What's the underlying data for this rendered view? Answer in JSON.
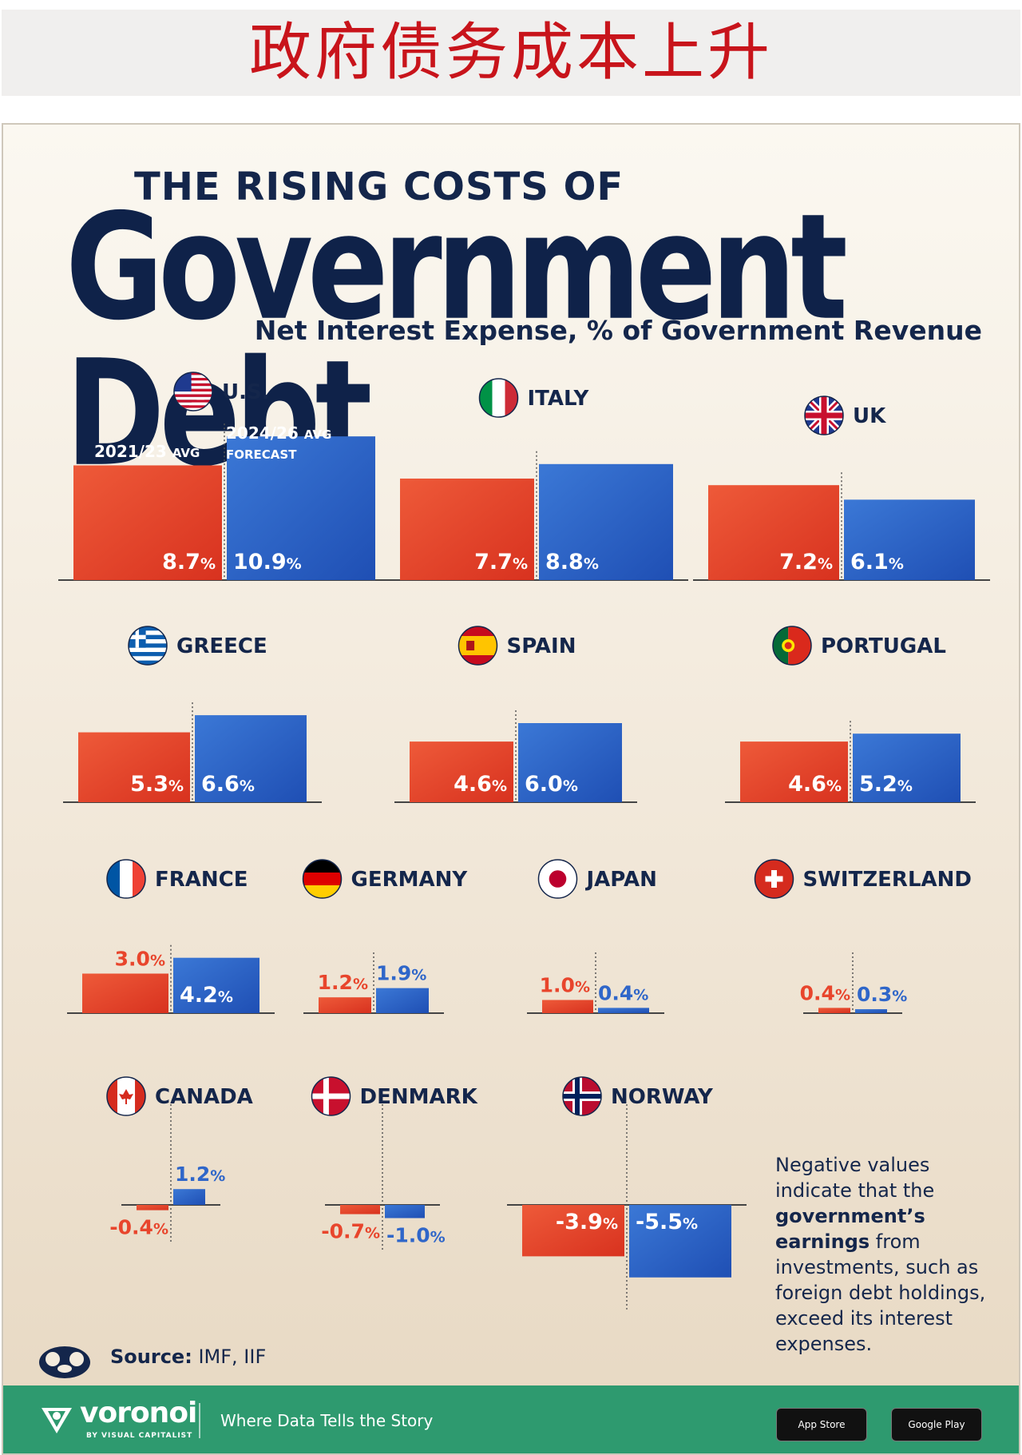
{
  "banner": {
    "title": "政府债务成本上升"
  },
  "header": {
    "pre_title": "THE RISING COSTS OF",
    "main_title": "Government Debt",
    "subtitle": "Net Interest Expense, % of Government Revenue"
  },
  "chart_data": {
    "type": "bar",
    "title": "The Rising Costs of Government Debt",
    "subtitle": "Net Interest Expense, % of Government Revenue",
    "unit": "%",
    "series": [
      {
        "name": "2021/23 AVG",
        "color": "#e8452c"
      },
      {
        "name": "2024/26 AVG FORECAST",
        "color": "#2f66c9"
      }
    ],
    "legend": {
      "series_1": "2021/23",
      "series_2": "2024/26",
      "avg": "AVG",
      "forecast": "FORECAST"
    },
    "countries": [
      {
        "name": "U.S.",
        "flag": "us-flag",
        "values": [
          8.7,
          10.9
        ]
      },
      {
        "name": "ITALY",
        "flag": "italy-flag",
        "values": [
          7.7,
          8.8
        ]
      },
      {
        "name": "UK",
        "flag": "uk-flag",
        "values": [
          7.2,
          6.1
        ]
      },
      {
        "name": "GREECE",
        "flag": "greece-flag",
        "values": [
          5.3,
          6.6
        ]
      },
      {
        "name": "SPAIN",
        "flag": "spain-flag",
        "values": [
          4.6,
          6.0
        ]
      },
      {
        "name": "PORTUGAL",
        "flag": "portugal-flag",
        "values": [
          4.6,
          5.2
        ]
      },
      {
        "name": "FRANCE",
        "flag": "france-flag",
        "values": [
          3.0,
          4.2
        ]
      },
      {
        "name": "GERMANY",
        "flag": "germany-flag",
        "values": [
          1.2,
          1.9
        ]
      },
      {
        "name": "JAPAN",
        "flag": "japan-flag",
        "values": [
          1.0,
          0.4
        ]
      },
      {
        "name": "SWITZERLAND",
        "flag": "switzerland-flag",
        "values": [
          0.4,
          0.3
        ]
      },
      {
        "name": "CANADA",
        "flag": "canada-flag",
        "values": [
          -0.4,
          1.2
        ]
      },
      {
        "name": "DENMARK",
        "flag": "denmark-flag",
        "values": [
          -0.7,
          -1.0
        ]
      },
      {
        "name": "NORWAY",
        "flag": "norway-flag",
        "values": [
          -3.9,
          -5.5
        ]
      }
    ]
  },
  "note": {
    "before": "Negative values indicate that the ",
    "bold": "government’s earnings",
    "after": " from investments, such as foreign debt holdings, exceed its interest expenses."
  },
  "source": {
    "label": "Source:",
    "value": "IMF, IIF"
  },
  "footer": {
    "brand": "voronoi",
    "brand_sub": "BY VISUAL CAPITALIST",
    "tagline": "Where Data Tells the Story",
    "app_store": "App Store",
    "google_play": "Google Play"
  }
}
